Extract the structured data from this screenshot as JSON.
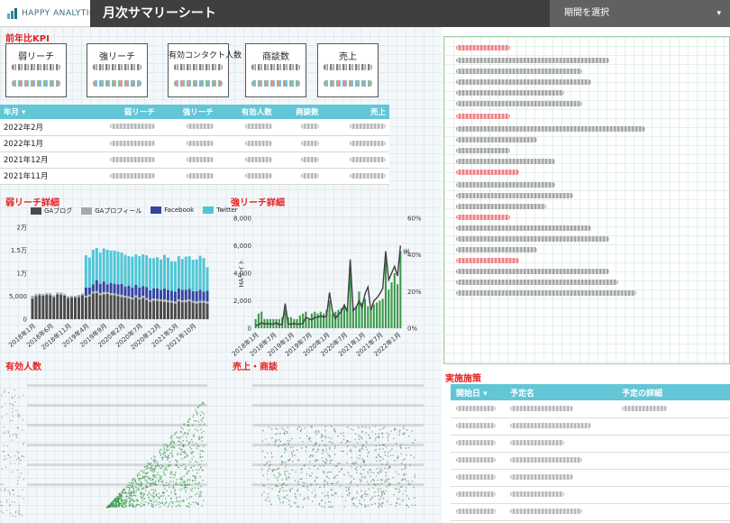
{
  "header": {
    "logo_text": "HAPPY ANALYTICS",
    "title": "月次サマリーシート",
    "period_selector": "期間を選択",
    "caret": "▾"
  },
  "sections": {
    "kpi_yoy": "前年比KPI",
    "weak_reach": "弱リーチ詳細",
    "strong_reach": "強リーチ詳細",
    "effective": "有効人数",
    "sales": "売上・商談",
    "measures": "実施施策"
  },
  "kpi_cards": [
    "弱リーチ",
    "強リーチ",
    "有効コンタクト人数",
    "商談数",
    "売上"
  ],
  "kpi_table": {
    "headers": [
      "年月 ▾",
      "弱リーチ",
      "強リーチ",
      "有効人数",
      "商談数",
      "売上"
    ],
    "rows": [
      "2022年2月",
      "2022年1月",
      "2021年12月",
      "2021年11月"
    ]
  },
  "measures_table": {
    "headers": [
      "開始日 ▾",
      "予定名",
      "予定の詳細"
    ]
  },
  "colors": {
    "accent": "#62c6d6",
    "section_title": "#e52222",
    "title_bar": "#3f3f3f",
    "gablog": "#4a4a4a",
    "gaprofile": "#a8a8a8",
    "facebook": "#3344a0",
    "twitter": "#4ec6d6",
    "strong_bar": "#3a9a48"
  },
  "chart_data": [
    {
      "type": "bar",
      "title": "弱リーチ詳細",
      "stacked": true,
      "legend_position": "top",
      "x_tick_labels": [
        "2018年1月",
        "2018年6月",
        "2018年11月",
        "2019年4月",
        "2019年9月",
        "2020年2月",
        "2020年7月",
        "2020年12月",
        "2021年5月",
        "2021年10月"
      ],
      "y_tick_labels": [
        "0",
        "5,000",
        "1万",
        "1.5万",
        "2万"
      ],
      "ylim": [
        0,
        20000
      ],
      "categories": [
        "2018年1月",
        "2018年2月",
        "2018年3月",
        "2018年4月",
        "2018年5月",
        "2018年6月",
        "2018年7月",
        "2018年8月",
        "2018年9月",
        "2018年10月",
        "2018年11月",
        "2018年12月",
        "2019年1月",
        "2019年2月",
        "2019年3月",
        "2019年4月",
        "2019年5月",
        "2019年6月",
        "2019年7月",
        "2019年8月",
        "2019年9月",
        "2019年10月",
        "2019年11月",
        "2019年12月",
        "2020年1月",
        "2020年2月",
        "2020年3月",
        "2020年4月",
        "2020年5月",
        "2020年6月",
        "2020年7月",
        "2020年8月",
        "2020年9月",
        "2020年10月",
        "2020年11月",
        "2020年12月",
        "2021年1月",
        "2021年2月",
        "2021年3月",
        "2021年4月",
        "2021年5月",
        "2021年6月",
        "2021年7月",
        "2021年8月",
        "2021年9月",
        "2021年10月",
        "2021年11月",
        "2021年12月",
        "2022年1月",
        "2022年2月"
      ],
      "series": [
        {
          "name": "GAブログ",
          "values": [
            4500,
            5000,
            5200,
            5100,
            5300,
            5200,
            4800,
            5400,
            5300,
            5100,
            4600,
            4700,
            4700,
            4800,
            5200,
            4700,
            4900,
            5600,
            5700,
            5200,
            5400,
            5500,
            5200,
            5200,
            5000,
            4800,
            4700,
            4500,
            4300,
            4700,
            4300,
            4600,
            4200,
            3800,
            4000,
            4000,
            3900,
            3800,
            3700,
            3600,
            3400,
            3900,
            3700,
            3700,
            3900,
            3600,
            3400,
            3600,
            3600,
            3400
          ]
        },
        {
          "name": "GAプロフィール",
          "values": [
            600,
            500,
            400,
            400,
            400,
            500,
            400,
            400,
            500,
            400,
            400,
            400,
            400,
            500,
            400,
            400,
            500,
            400,
            400,
            500,
            500,
            400,
            500,
            400,
            400,
            500,
            400,
            500,
            400,
            500,
            400,
            500,
            400,
            400,
            500,
            400,
            400,
            500,
            400,
            400,
            500,
            400,
            400,
            500,
            400,
            400,
            500,
            400,
            400,
            500
          ]
        },
        {
          "name": "Facebook",
          "values": [
            0,
            0,
            0,
            0,
            0,
            0,
            0,
            0,
            0,
            0,
            0,
            0,
            0,
            0,
            0,
            1800,
            1500,
            1600,
            2400,
            2000,
            2300,
            1700,
            2200,
            2100,
            2200,
            2400,
            2000,
            2300,
            2200,
            2300,
            2200,
            2100,
            2400,
            2100,
            2200,
            2300,
            2100,
            2400,
            2300,
            2200,
            2100,
            2400,
            2300,
            2200,
            2300,
            2100,
            2200,
            2400,
            2000,
            2300
          ]
        },
        {
          "name": "Twitter",
          "values": [
            0,
            0,
            0,
            0,
            0,
            0,
            0,
            0,
            0,
            0,
            0,
            0,
            0,
            0,
            0,
            7000,
            6500,
            7500,
            7000,
            6800,
            7200,
            7500,
            7000,
            7200,
            7100,
            6800,
            6900,
            6400,
            6700,
            6600,
            6800,
            6900,
            6900,
            7000,
            6600,
            6800,
            6600,
            7300,
            7000,
            6400,
            6600,
            7000,
            6700,
            7200,
            7100,
            6800,
            6900,
            7400,
            7300,
            5100
          ]
        }
      ]
    },
    {
      "type": "line",
      "title": "強リーチ詳細",
      "combo": "bar+line",
      "x_tick_labels": [
        "2018年1月",
        "2018年7月",
        "2019年1月",
        "2019年7月",
        "2020年1月",
        "2020年7月",
        "2021年1月",
        "2021年7月",
        "2022年1月"
      ],
      "y_tick_labels": [
        "0",
        "2,000",
        "4,000",
        "6,000",
        "8,000"
      ],
      "y2_tick_labels": [
        "0%",
        "20%",
        "40%",
        "60%"
      ],
      "ylabel": "HAサイト",
      "y2label": "率",
      "ylim": [
        0,
        8000
      ],
      "y2lim": [
        0,
        60
      ],
      "categories": [
        "2018年1月",
        "2018年2月",
        "2018年3月",
        "2018年4月",
        "2018年5月",
        "2018年6月",
        "2018年7月",
        "2018年8月",
        "2018年9月",
        "2018年10月",
        "2018年11月",
        "2018年12月",
        "2019年1月",
        "2019年2月",
        "2019年3月",
        "2019年4月",
        "2019年5月",
        "2019年6月",
        "2019年7月",
        "2019年8月",
        "2019年9月",
        "2019年10月",
        "2019年11月",
        "2019年12月",
        "2020年1月",
        "2020年2月",
        "2020年3月",
        "2020年4月",
        "2020年5月",
        "2020年6月",
        "2020年7月",
        "2020年8月",
        "2020年9月",
        "2020年10月",
        "2020年11月",
        "2020年12月",
        "2021年1月",
        "2021年2月",
        "2021年3月",
        "2021年4月",
        "2021年5月",
        "2021年6月",
        "2021年7月",
        "2021年8月",
        "2021年9月",
        "2021年10月",
        "2021年11月",
        "2021年12月",
        "2022年1月",
        "2022年2月"
      ],
      "series": [
        {
          "name": "HAサイト",
          "values": [
            200,
            250,
            400,
            300,
            350,
            300,
            300,
            400,
            250,
            300,
            1800,
            300,
            300,
            350,
            300,
            300,
            350,
            800,
            700,
            600,
            800,
            800,
            900,
            800,
            900,
            2600,
            1200,
            700,
            1000,
            1200,
            1700,
            1200,
            5000,
            1300,
            1500,
            2000,
            1500,
            2500,
            3000,
            1300,
            2000,
            2200,
            2500,
            2900,
            5600,
            3500,
            4000,
            4500,
            3800,
            6000
          ]
        },
        {
          "name": "率",
          "values": [
            5,
            8,
            9,
            5,
            5,
            5,
            5,
            5,
            5,
            6,
            10,
            6,
            6,
            5,
            5,
            7,
            8,
            9,
            5,
            8,
            9,
            8,
            9,
            8,
            10,
            15,
            8,
            9,
            10,
            11,
            12,
            11,
            30,
            11,
            12,
            20,
            14,
            16,
            12,
            11,
            13,
            14,
            15,
            16,
            38,
            21,
            25,
            30,
            24,
            42
          ]
        }
      ]
    }
  ]
}
